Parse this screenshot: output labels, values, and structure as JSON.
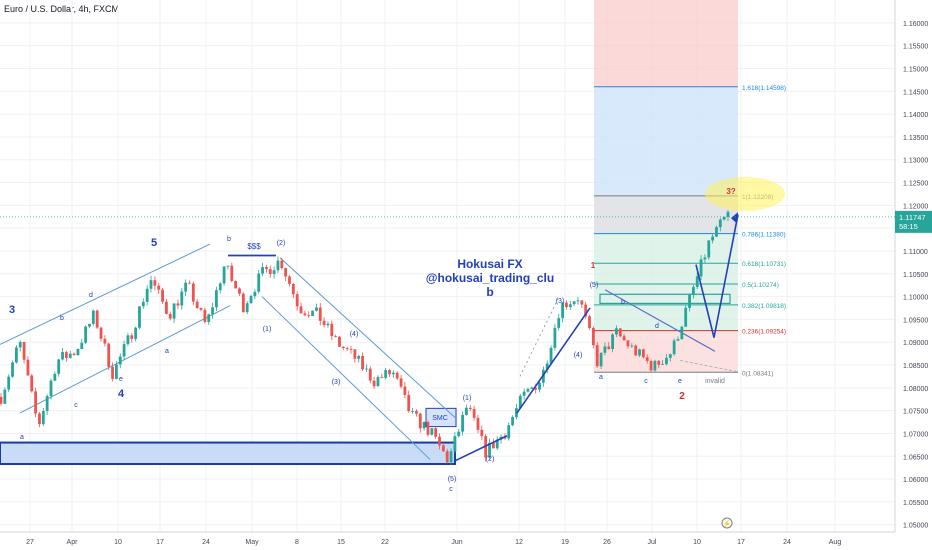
{
  "chart_title": "Euro / U.S. Dollar, 4h, FXCM",
  "colors": {
    "up": "#26a69a",
    "down": "#ef5350",
    "wave": "#2440b8",
    "red": "#d32f2f",
    "current": "#26a69a",
    "fib": "#1e88e5",
    "grid": "#eef0f3"
  },
  "chart_data": {
    "type": "candlestick",
    "symbol": "EURUSD",
    "timeframe": "4h",
    "source": "FXCM",
    "ylim": [
      1.045,
      1.165
    ],
    "y_ticks": [
      "1.16000",
      "1.15500",
      "1.15000",
      "1.14500",
      "1.14000",
      "1.13500",
      "1.13000",
      "1.12500",
      "1.12000",
      "1.11500",
      "1.11000",
      "1.10500",
      "1.10000",
      "1.09500",
      "1.09000",
      "1.08500",
      "1.08000",
      "1.07500",
      "1.07000",
      "1.06500",
      "1.06000",
      "1.05500",
      "1.05000"
    ],
    "x_ticks": [
      "27",
      "Apr",
      "10",
      "17",
      "24",
      "May",
      "8",
      "15",
      "22",
      "Jun",
      "12",
      "19",
      "26",
      "Jul",
      "10",
      "17",
      "24",
      "Aug"
    ],
    "price_path": [
      [
        "27",
        1.078
      ],
      [
        "28",
        1.09
      ],
      [
        "29",
        1.0715
      ],
      [
        "31",
        1.086
      ],
      [
        "Apr",
        1.088
      ],
      [
        "5",
        1.096
      ],
      [
        "7",
        1.083
      ],
      [
        "10",
        1.092
      ],
      [
        "13",
        1.104
      ],
      [
        "15",
        1.096
      ],
      [
        "18",
        1.1025
      ],
      [
        "20",
        1.0935
      ],
      [
        "24",
        1.107
      ],
      [
        "27",
        1.098
      ],
      [
        "May",
        1.105
      ],
      [
        "4",
        1.108
      ],
      [
        "8",
        1.0975
      ],
      [
        "11",
        1.096
      ],
      [
        "15",
        1.09
      ],
      [
        "17",
        1.0865
      ],
      [
        "19",
        1.0815
      ],
      [
        "22",
        1.0835
      ],
      [
        "25",
        1.074
      ],
      [
        "29",
        1.0705
      ],
      [
        "30",
        1.064
      ],
      [
        "Jun",
        1.076
      ],
      [
        "5",
        1.066
      ],
      [
        "7",
        1.07
      ],
      [
        "12",
        1.078
      ],
      [
        "15",
        1.082
      ],
      [
        "19",
        1.098
      ],
      [
        "22",
        1.1
      ],
      [
        "26",
        1.0855
      ],
      [
        "30",
        1.092
      ],
      [
        "Jul",
        1.088
      ],
      [
        "5",
        1.0845
      ],
      [
        "7",
        1.088
      ],
      [
        "10",
        1.1
      ],
      [
        "12",
        1.112
      ],
      [
        "14",
        1.118
      ]
    ],
    "current_price": "1.11747",
    "countdown": "58:15",
    "fib_levels": [
      {
        "label": "1.618(1.14598)",
        "value": 1.14598
      },
      {
        "label": "1(1.12208)",
        "value": 1.12208
      },
      {
        "label": "0.786(1.11380)",
        "value": 1.1138
      },
      {
        "label": "0.618(1.10731)",
        "value": 1.10731
      },
      {
        "label": "0.5(1.10274)",
        "value": 1.10274
      },
      {
        "label": "0.382(1.09818)",
        "value": 1.09818
      },
      {
        "label": "0.236(1.09254)",
        "value": 1.09254
      },
      {
        "label": "0(1.08341)",
        "value": 1.08341
      }
    ],
    "watermark": [
      "Hokusai FX",
      "@hokusai_trading_clu",
      "b"
    ],
    "wave_labels": [
      {
        "t": "3"
      },
      {
        "t": "4"
      },
      {
        "t": "5"
      },
      {
        "t": "a"
      },
      {
        "t": "b"
      },
      {
        "t": "c"
      },
      {
        "t": "d"
      },
      {
        "t": "e"
      },
      {
        "t": "a"
      },
      {
        "t": "b"
      },
      {
        "t": "$$$"
      },
      {
        "t": "(2)"
      },
      {
        "t": "(1)"
      },
      {
        "t": "(3)"
      },
      {
        "t": "(4)"
      },
      {
        "t": "(5)"
      },
      {
        "t": "c"
      },
      {
        "t": "(1)"
      },
      {
        "t": "(2)"
      },
      {
        "t": "(3)"
      },
      {
        "t": "(4)"
      },
      {
        "t": "(5)"
      },
      {
        "t": "1"
      },
      {
        "t": "2"
      },
      {
        "t": "a"
      },
      {
        "t": "b"
      },
      {
        "t": "c"
      },
      {
        "t": "d"
      },
      {
        "t": "e"
      },
      {
        "t": "invalid"
      },
      {
        "t": "3?"
      },
      {
        "t": "SMC"
      }
    ]
  }
}
